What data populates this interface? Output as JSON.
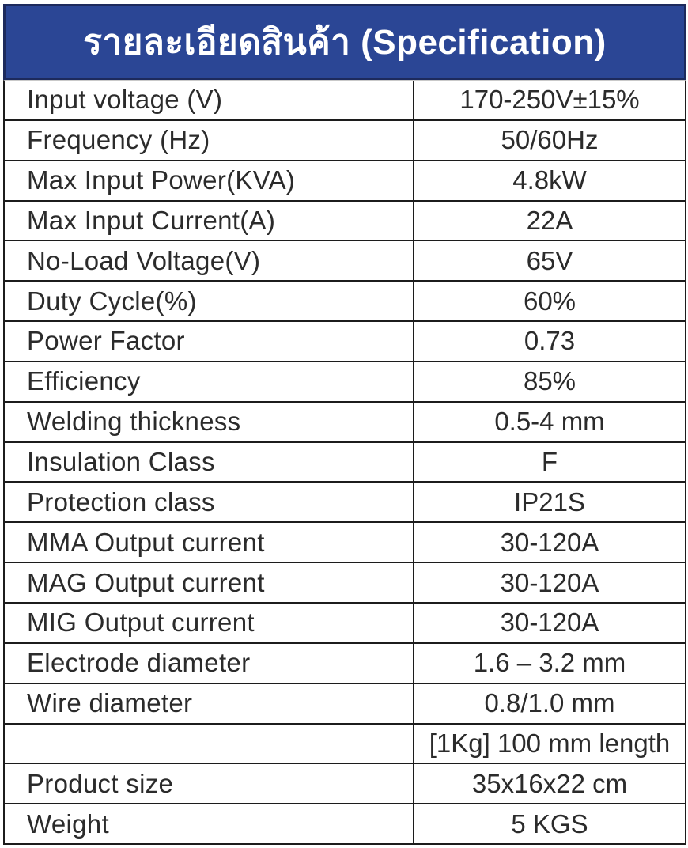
{
  "header": {
    "title": "รายละเอียดสินค้า (Specification)",
    "bg_color": "#2b4695",
    "border_color": "#1d2a5c",
    "text_color": "#ffffff"
  },
  "table": {
    "border_color": "#1c1c1c",
    "text_color": "#2b2b2b",
    "columns": [
      "parameter",
      "value"
    ],
    "rows": [
      {
        "label": "Input voltage (V)",
        "value": "170-250V±15%"
      },
      {
        "label": "Frequency (Hz)",
        "value": "50/60Hz"
      },
      {
        "label": "Max Input Power(KVA)",
        "value": "4.8kW"
      },
      {
        "label": "Max Input Current(A)",
        "value": "22A"
      },
      {
        "label": "No-Load Voltage(V)",
        "value": "65V"
      },
      {
        "label": "Duty Cycle(%)",
        "value": "60%"
      },
      {
        "label": "Power Factor",
        "value": "0.73"
      },
      {
        "label": "Efficiency",
        "value": "85%"
      },
      {
        "label": "Welding thickness",
        "value": "0.5-4 mm"
      },
      {
        "label": "Insulation Class",
        "value": "F"
      },
      {
        "label": "Protection class",
        "value": "IP21S"
      },
      {
        "label": "MMA Output current",
        "value": "30-120A"
      },
      {
        "label": "MAG Output current",
        "value": "30-120A"
      },
      {
        "label": "MIG Output current",
        "value": "30-120A"
      },
      {
        "label": "Electrode diameter",
        "value": "1.6 – 3.2 mm"
      },
      {
        "label": "Wire diameter",
        "value": "0.8/1.0 mm"
      },
      {
        "label": "",
        "value": "[1Kg] 100 mm length"
      },
      {
        "label": "Product size",
        "value": "35x16x22 cm"
      },
      {
        "label": "Weight",
        "value": "5 KGS"
      }
    ]
  }
}
